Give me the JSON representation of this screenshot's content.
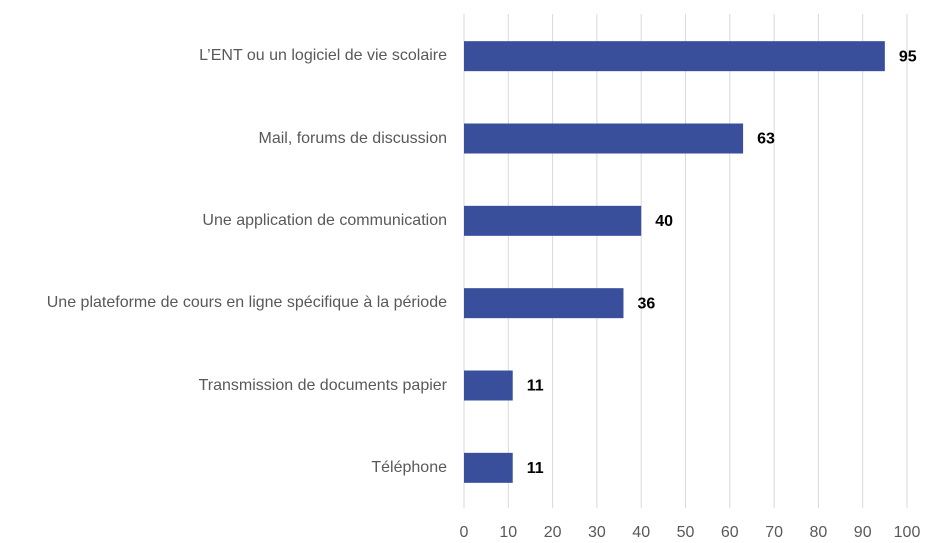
{
  "chart_data": {
    "type": "bar",
    "orientation": "horizontal",
    "categories": [
      "L’ENT ou un logiciel de vie scolaire",
      "Mail, forums de discussion",
      "Une application de communication",
      "Une plateforme de cours en ligne spécifique à la période",
      "Transmission de documents papier",
      "Téléphone"
    ],
    "values": [
      95,
      63,
      40,
      36,
      11,
      11
    ],
    "color": "#3a4f9c",
    "xlim": [
      0,
      100
    ],
    "xticks": [
      0,
      10,
      20,
      30,
      40,
      50,
      60,
      70,
      80,
      90,
      100
    ],
    "grid": true
  }
}
